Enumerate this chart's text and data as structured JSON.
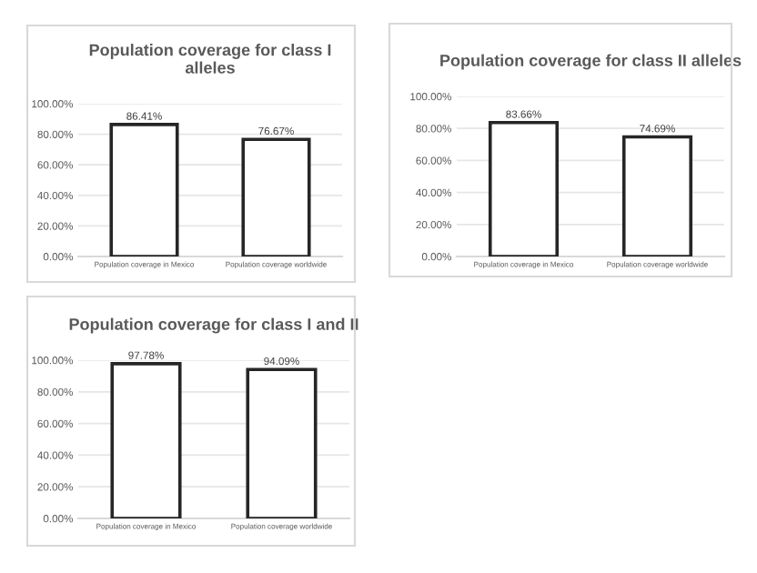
{
  "chart_data": [
    {
      "type": "bar",
      "title": "Population coverage for class I\nalleles",
      "categories": [
        "Population coverage in Mexico",
        "Population coverage worldwide"
      ],
      "values": [
        86.41,
        76.67
      ],
      "value_labels": [
        "86.41%",
        "76.67%"
      ],
      "color": "#ffffff",
      "ylim": [
        0,
        100
      ],
      "yticks": [
        {
          "value": 0,
          "label": "0.00%"
        },
        {
          "value": 20,
          "label": "20.00%"
        },
        {
          "value": 40,
          "label": "40.00%"
        },
        {
          "value": 60,
          "label": "60.00%"
        },
        {
          "value": 80,
          "label": "80.00%"
        },
        {
          "value": 100,
          "label": "100.00%"
        }
      ],
      "grid": "y"
    },
    {
      "type": "bar",
      "title": "Population coverage for class II alleles",
      "categories": [
        "Population coverage in Mexico",
        "Population coverage worldwide"
      ],
      "values": [
        83.66,
        74.69
      ],
      "value_labels": [
        "83.66%",
        "74.69%"
      ],
      "color": "#ffffff",
      "ylim": [
        0,
        100
      ],
      "yticks": [
        {
          "value": 0,
          "label": "0.00%"
        },
        {
          "value": 20,
          "label": "20.00%"
        },
        {
          "value": 40,
          "label": "40.00%"
        },
        {
          "value": 60,
          "label": "60.00%"
        },
        {
          "value": 80,
          "label": "80.00%"
        },
        {
          "value": 100,
          "label": "100.00%"
        }
      ],
      "grid": "y"
    },
    {
      "type": "bar",
      "title": "Population coverage for class I and II",
      "categories": [
        "Population coverage in Mexico",
        "Population coverage worldwide"
      ],
      "values": [
        97.78,
        94.09
      ],
      "value_labels": [
        "97.78%",
        "94.09%"
      ],
      "color": "#ffffff",
      "ylim": [
        0,
        100
      ],
      "yticks": [
        {
          "value": 0,
          "label": "0.00%"
        },
        {
          "value": 20,
          "label": "20.00%"
        },
        {
          "value": 40,
          "label": "40.00%"
        },
        {
          "value": 60,
          "label": "60.00%"
        },
        {
          "value": 80,
          "label": "80.00%"
        },
        {
          "value": 100,
          "label": "100.00%"
        }
      ],
      "grid": "y"
    }
  ]
}
